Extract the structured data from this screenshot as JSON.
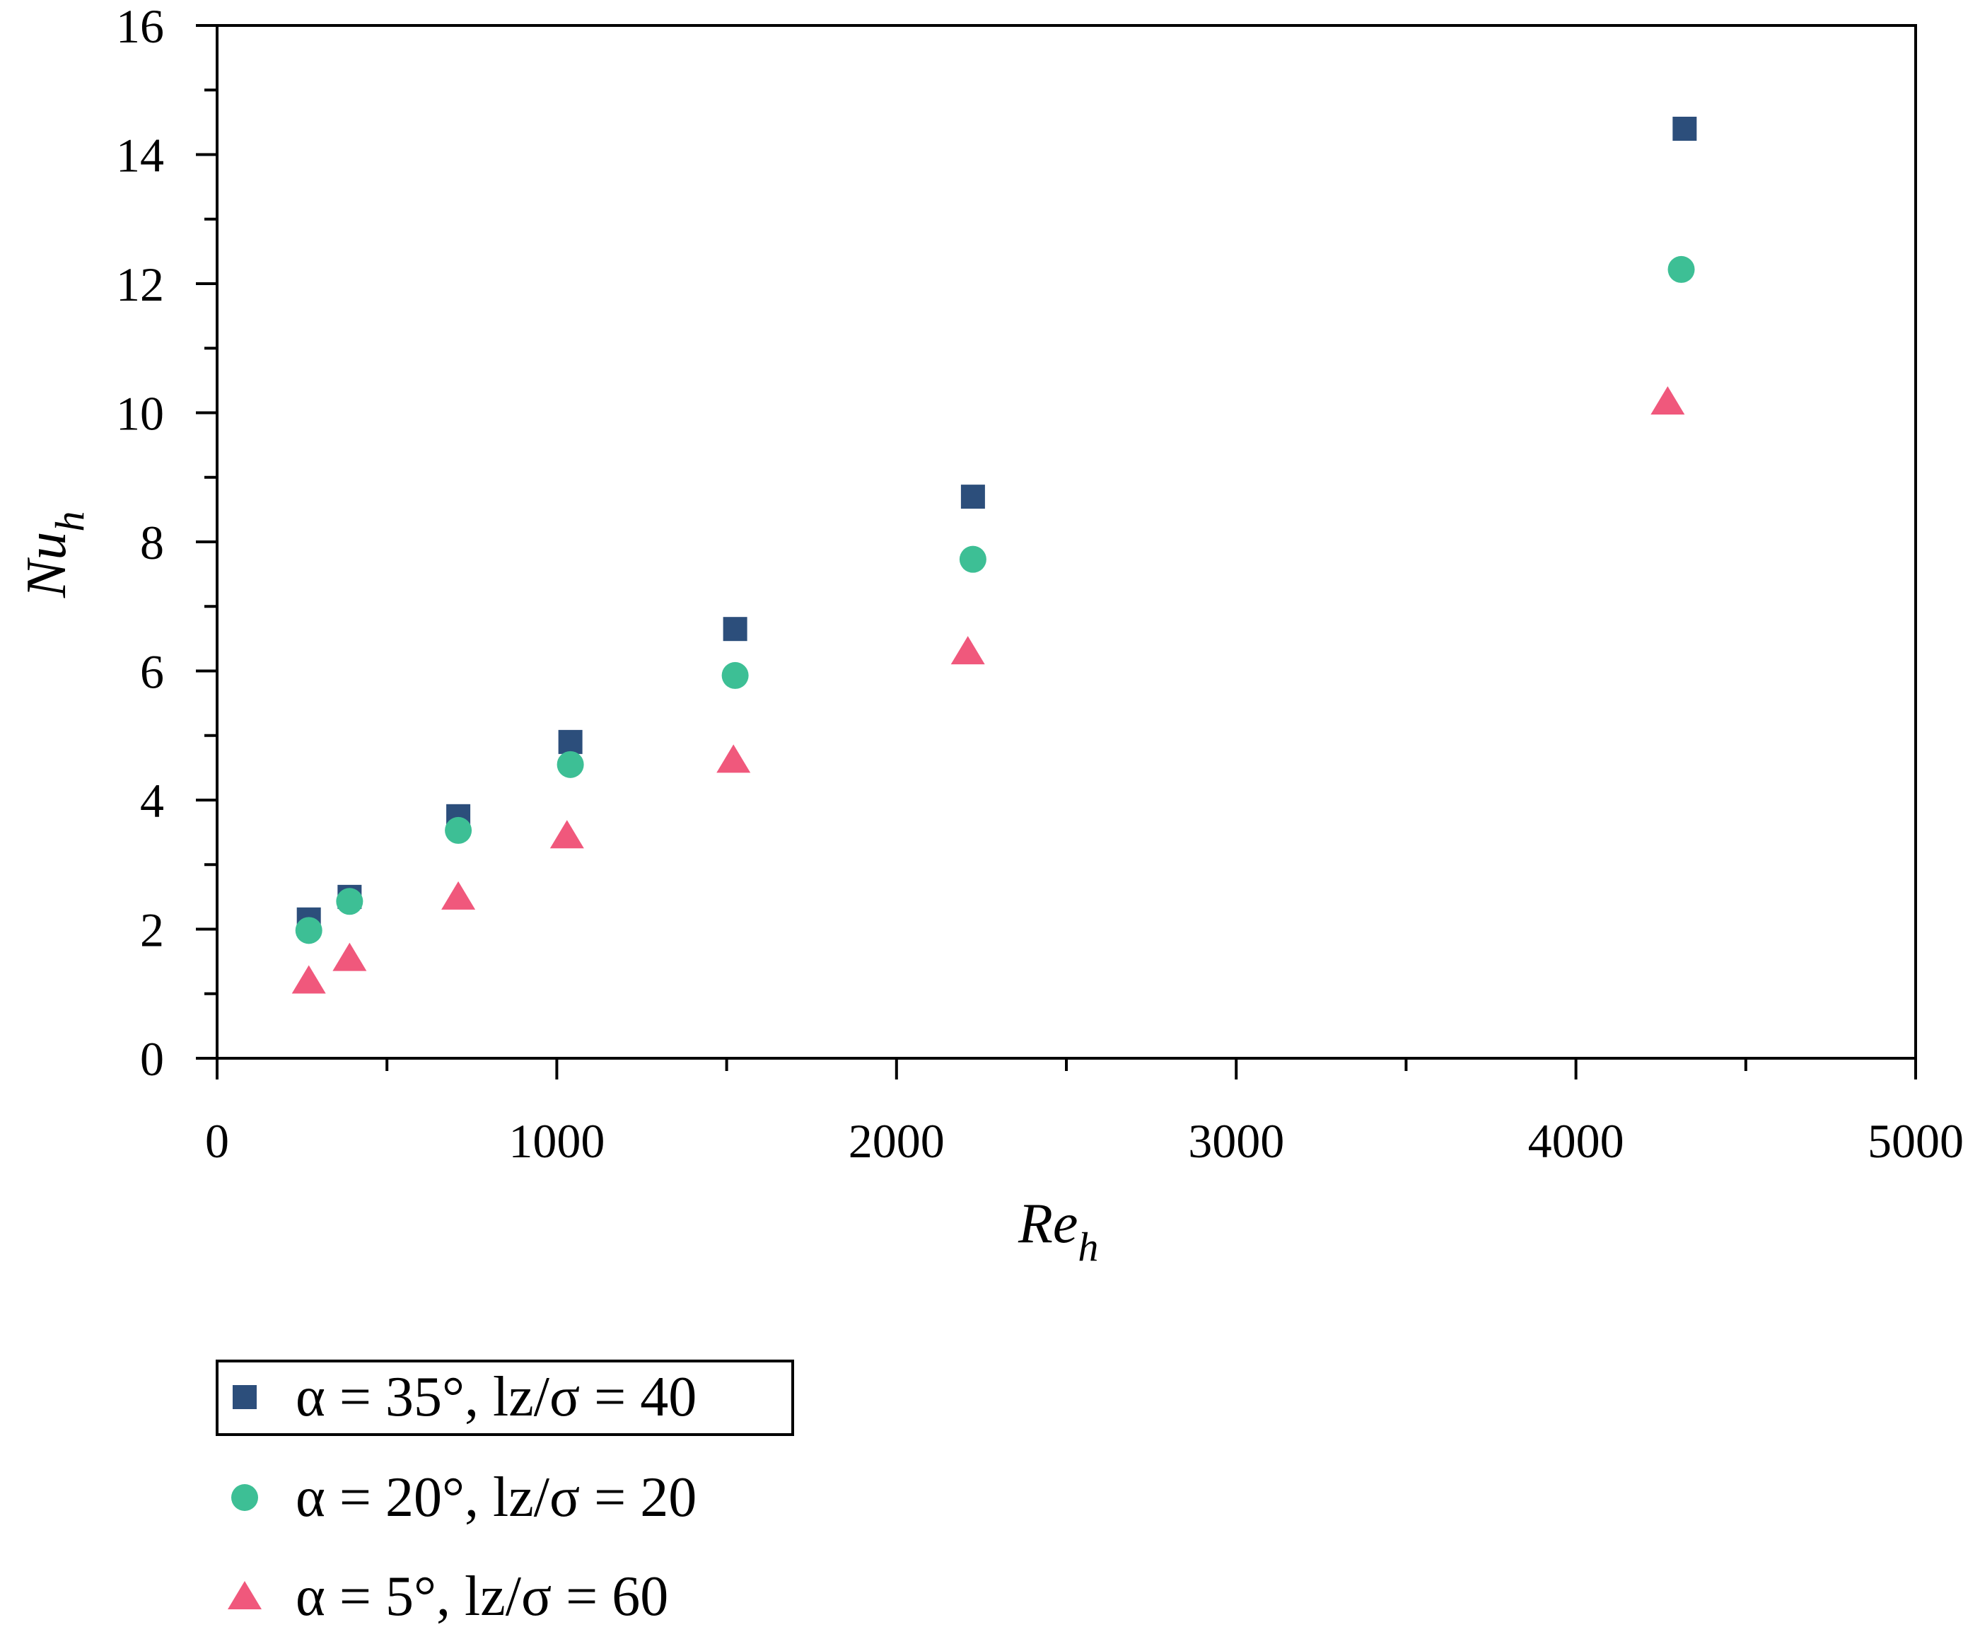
{
  "chart_data": {
    "type": "scatter",
    "xlabel": {
      "base": "Re",
      "sub": "h"
    },
    "ylabel": {
      "base": "Nu",
      "sub": "h"
    },
    "xlim": [
      0,
      5000
    ],
    "ylim": [
      0,
      16
    ],
    "x_ticks": [
      "0",
      "1000",
      "2000",
      "3000",
      "4000",
      "5000"
    ],
    "y_ticks": [
      "0",
      "2",
      "4",
      "6",
      "8",
      "10",
      "12",
      "14",
      "16"
    ],
    "grid": false,
    "legend_position": "bottom-left, below plot",
    "series": [
      {
        "name": "α = 35°, lz/σ = 40",
        "marker": "square",
        "color": "#2c4e7b",
        "x": [
          270,
          390,
          710,
          1040,
          1525,
          2225,
          4320
        ],
        "y": [
          2.15,
          2.5,
          3.75,
          4.9,
          6.65,
          8.7,
          14.4
        ]
      },
      {
        "name": "α = 20°, lz/σ = 20",
        "marker": "circle",
        "color": "#3dbf95",
        "x": [
          270,
          390,
          710,
          1040,
          1525,
          2225,
          4310
        ],
        "y": [
          1.98,
          2.43,
          3.53,
          4.55,
          5.93,
          7.73,
          12.22
        ]
      },
      {
        "name": "α = 5°, lz/σ = 60",
        "marker": "triangle",
        "color": "#f0587c",
        "x": [
          270,
          390,
          710,
          1030,
          1520,
          2210,
          4270
        ],
        "y": [
          1.2,
          1.55,
          2.5,
          3.45,
          4.62,
          6.3,
          10.17
        ]
      }
    ]
  }
}
